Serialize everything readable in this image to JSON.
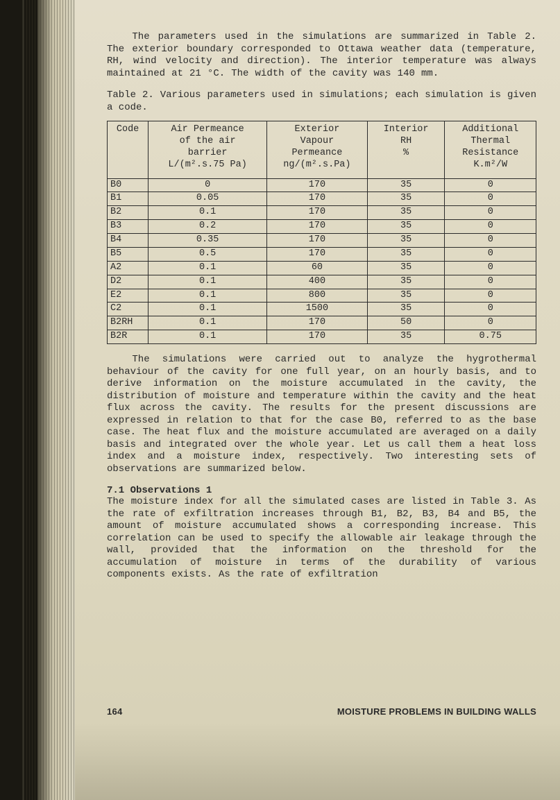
{
  "para1": "The parameters used in the simulations are summarized in Table 2. The exterior boundary corresponded to Ottawa weather data (temperature, RH, wind velocity and direction). The interior temperature was always maintained at 21 °C. The width of the cavity was 140 mm.",
  "caption": "Table 2. Various parameters used in simulations; each simulation is given a code.",
  "table": {
    "headers": {
      "code": "Code",
      "air_l1": "Air Permeance",
      "air_l2": "of the air",
      "air_l3": "barrier",
      "air_l4": "L/(m².s.75 Pa)",
      "ext_l1": "Exterior",
      "ext_l2": "Vapour",
      "ext_l3": "Permeance",
      "ext_l4": "ng/(m².s.Pa)",
      "int_l1": "Interior",
      "int_l2": "RH",
      "int_l3": "%",
      "add_l1": "Additional",
      "add_l2": "Thermal",
      "add_l3": "Resistance",
      "add_l4": "K.m²/W"
    },
    "rows": [
      {
        "code": "B0",
        "air": "0",
        "ext": "170",
        "int": "35",
        "add": "0"
      },
      {
        "code": "B1",
        "air": "0.05",
        "ext": "170",
        "int": "35",
        "add": "0"
      },
      {
        "code": "B2",
        "air": "0.1",
        "ext": "170",
        "int": "35",
        "add": "0"
      },
      {
        "code": "B3",
        "air": "0.2",
        "ext": "170",
        "int": "35",
        "add": "0"
      },
      {
        "code": "B4",
        "air": "0.35",
        "ext": "170",
        "int": "35",
        "add": "0"
      },
      {
        "code": "B5",
        "air": "0.5",
        "ext": "170",
        "int": "35",
        "add": "0"
      },
      {
        "code": "A2",
        "air": "0.1",
        "ext": "60",
        "int": "35",
        "add": "0"
      },
      {
        "code": "D2",
        "air": "0.1",
        "ext": "400",
        "int": "35",
        "add": "0"
      },
      {
        "code": "E2",
        "air": "0.1",
        "ext": "800",
        "int": "35",
        "add": "0"
      },
      {
        "code": "C2",
        "air": "0.1",
        "ext": "1500",
        "int": "35",
        "add": "0"
      },
      {
        "code": "B2RH",
        "air": "0.1",
        "ext": "170",
        "int": "50",
        "add": "0"
      },
      {
        "code": "B2R",
        "air": "0.1",
        "ext": "170",
        "int": "35",
        "add": "0.75"
      }
    ]
  },
  "para2": "The simulations were carried out to analyze the hygrothermal behaviour of the cavity for one full year, on an hourly basis, and to derive information on the moisture accumulated in the cavity, the distribution of moisture and temperature within the cavity and the heat flux across the cavity. The results for the present discussions are expressed in relation to that for the case B0, referred to as the base case. The heat flux and the moisture accumulated are averaged on a daily basis and integrated over the whole year. Let us call them a heat loss index and a moisture index, respectively. Two interesting sets of observations are summarized below.",
  "section": "7.1 Observations 1",
  "para3": "The moisture index for all the simulated cases are listed in Table 3. As the rate of exfiltration increases through B1, B2, B3, B4 and B5, the amount of moisture accumulated shows a corresponding increase. This correlation can be used to specify the allowable air leakage through the wall, provided that the information on the threshold for the accumulation of moisture in terms of the durability of various components exists. As the rate of exfiltration",
  "footer": {
    "page": "164",
    "title": "MOISTURE PROBLEMS IN BUILDING WALLS"
  }
}
